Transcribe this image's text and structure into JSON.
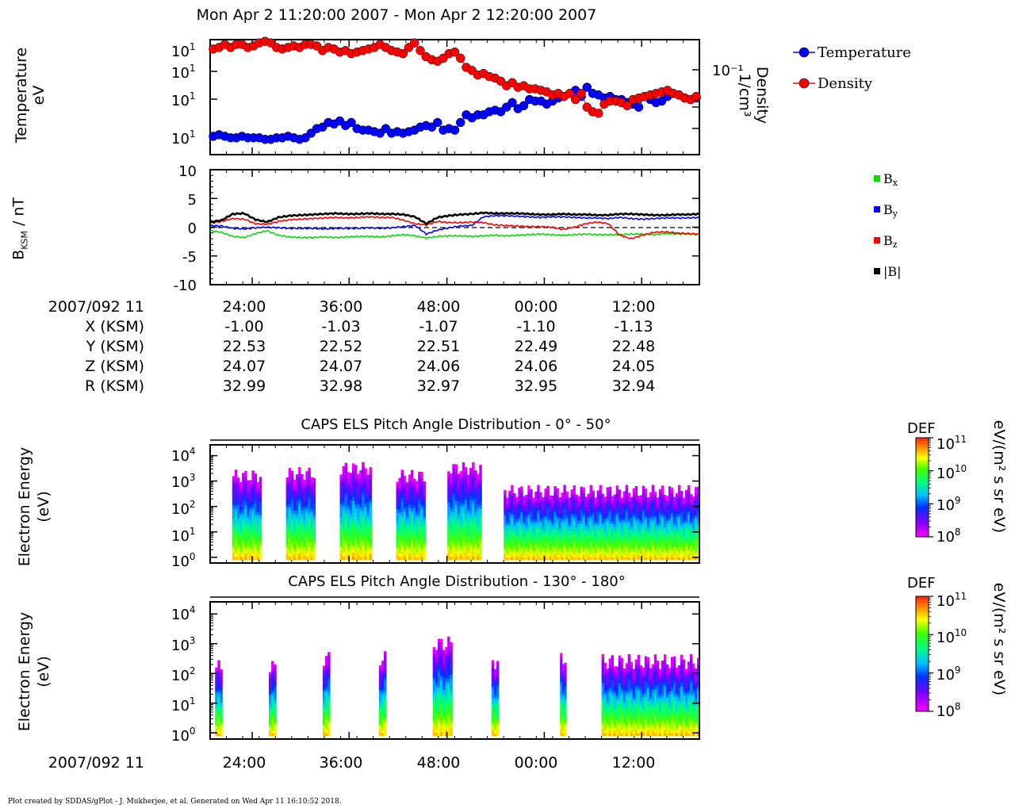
{
  "header": {
    "title": "Mon Apr 2 11:20:00 2007 - Mon Apr 2 12:20:00 2007"
  },
  "panel1": {
    "ylabel_left": [
      "Temperature",
      "eV"
    ],
    "ylabel_right": [
      "Density",
      "1/cm³"
    ],
    "left_ticks": [
      "10",
      "10",
      "10",
      "10"
    ],
    "left_tick_exps": [
      "1",
      "1",
      "1",
      "1"
    ],
    "right_tick": "10⁻¹",
    "legend": [
      {
        "label": "Temperature",
        "color": "#0000ff"
      },
      {
        "label": "Density",
        "color": "#ff0000"
      }
    ]
  },
  "panel2": {
    "ylabel_main": "B",
    "ylabel_sub": "KSM",
    "ylabel_unit": " / nT",
    "y_ticks": [
      "10",
      "5",
      "0",
      "-5",
      "-10"
    ],
    "legend": [
      {
        "label": "B",
        "sub": "x",
        "color": "#00dd00"
      },
      {
        "label": "B",
        "sub": "y",
        "color": "#0000ff"
      },
      {
        "label": "B",
        "sub": "z",
        "color": "#ff0000"
      },
      {
        "label": "|B|",
        "sub": "",
        "color": "#000000"
      }
    ]
  },
  "ephemeris": {
    "row_labels": [
      "2007/092 11",
      "X (KSM)",
      "Y (KSM)",
      "Z (KSM)",
      "R (KSM)"
    ],
    "columns": [
      {
        "time": "24:00",
        "x": "-1.00",
        "y": "22.53",
        "z": "24.07",
        "r": "32.99"
      },
      {
        "time": "36:00",
        "x": "-1.03",
        "y": "22.52",
        "z": "24.07",
        "r": "32.98"
      },
      {
        "time": "48:00",
        "x": "-1.07",
        "y": "22.51",
        "z": "24.06",
        "r": "32.97"
      },
      {
        "time": "00:00",
        "x": "-1.10",
        "y": "22.49",
        "z": "24.06",
        "r": "32.95"
      },
      {
        "time": "12:00",
        "x": "-1.13",
        "y": "22.48",
        "z": "24.05",
        "r": "32.94"
      }
    ]
  },
  "spectrogram_top": {
    "title": "CAPS ELS Pitch Angle Distribution - 0° - 50°",
    "ylabel": [
      "Electron Energy",
      "(eV)"
    ],
    "y_tick_exps": [
      "4",
      "3",
      "2",
      "1",
      "0"
    ],
    "colorbar": {
      "title": "DEF",
      "unit": "eV/(m² s sr eV)",
      "tick_exps": [
        "11",
        "10",
        "9",
        "8"
      ]
    }
  },
  "spectrogram_bottom": {
    "title": "CAPS ELS Pitch Angle Distribution - 130° - 180°",
    "ylabel": [
      "Electron Energy",
      "(eV)"
    ],
    "y_tick_exps": [
      "4",
      "3",
      "2",
      "1",
      "0"
    ],
    "colorbar": {
      "title": "DEF",
      "unit": "eV/(m² s sr eV)",
      "tick_exps": [
        "11",
        "10",
        "9",
        "8"
      ]
    }
  },
  "bottom_axis": {
    "date_label": "2007/092 11",
    "ticks": [
      "24:00",
      "36:00",
      "48:00",
      "00:00",
      "12:00"
    ]
  },
  "footer": "Plot created by SDDAS/gPlot - J. Mukherjee, et al.  Generated on Wed Apr 11 16:10:52 2018.",
  "chart_data": [
    {
      "type": "scatter",
      "title": "Mon Apr 2 11:20:00 2007 - Mon Apr 2 12:20:00 2007",
      "xlabel": "",
      "ylabel": "Temperature eV",
      "x_ticks": [
        "24:00",
        "36:00",
        "48:00",
        "00:00",
        "12:00"
      ],
      "series": [
        {
          "name": "Temperature",
          "color": "#0000ff",
          "values": [
            12,
            13,
            12,
            11,
            11,
            12,
            11,
            11,
            11,
            10,
            10,
            11,
            11,
            12,
            11,
            10,
            11,
            14,
            17,
            18,
            21,
            20,
            22,
            19,
            21,
            17,
            16,
            16,
            15,
            14,
            17,
            14,
            15,
            14,
            15,
            16,
            18,
            19,
            18,
            21,
            16,
            17,
            16,
            21,
            26,
            24,
            26,
            26,
            28,
            29,
            28,
            31,
            34,
            30,
            32,
            36,
            35,
            35,
            33,
            35,
            37,
            38,
            40,
            42,
            38,
            44,
            40,
            39,
            37,
            38,
            36,
            36,
            34,
            33,
            31,
            38,
            36,
            34,
            35,
            38,
            40,
            39,
            37,
            36,
            37
          ]
        },
        {
          "name": "Density",
          "color": "#ff0000",
          "values": [
            69,
            70,
            72,
            70,
            72,
            72,
            70,
            71,
            73,
            74,
            73,
            70,
            69,
            70,
            71,
            70,
            72,
            72,
            71,
            68,
            70,
            69,
            67,
            68,
            66,
            67,
            68,
            69,
            70,
            72,
            70,
            68,
            67,
            66,
            70,
            73,
            68,
            64,
            62,
            61,
            63,
            66,
            67,
            63,
            57,
            55,
            52,
            53,
            51,
            50,
            48,
            45,
            47,
            44,
            45,
            43,
            43,
            42,
            41,
            39,
            40,
            38,
            40,
            36,
            40,
            31,
            28,
            27,
            33,
            35,
            35,
            34,
            32,
            36,
            37,
            38,
            39,
            40,
            41,
            42,
            40,
            39,
            37,
            36,
            38
          ]
        }
      ]
    },
    {
      "type": "line",
      "title": "",
      "xlabel": "",
      "ylabel": "BKSM / nT",
      "ylim": [
        -10,
        10
      ],
      "x_ticks": [
        "24:00",
        "36:00",
        "48:00",
        "00:00",
        "12:00"
      ],
      "series": [
        {
          "name": "Bx",
          "color": "#00dd00",
          "values": [
            -0.6,
            -0.9,
            -1.6,
            -1.8,
            -1.1,
            -0.6,
            -1.4,
            -1.7,
            -1.8,
            -1.8,
            -1.7,
            -1.8,
            -1.7,
            -1.6,
            -1.6,
            -1.7,
            -1.5,
            -1.3,
            -1.5,
            -1.9,
            -1.6,
            -1.5,
            -1.5,
            -1.6,
            -1.5,
            -1.4,
            -1.5,
            -1.4,
            -1.3,
            -1.2,
            -1.3,
            -1.4,
            -1.3,
            -1.2,
            -1.3,
            -1.3,
            -1.3,
            -1.2,
            -1.2,
            -1.3,
            -1.1,
            -1.2,
            -1.2,
            -1.3
          ]
        },
        {
          "name": "By",
          "color": "#0000ff",
          "values": [
            0.3,
            0.2,
            -0.2,
            -0.3,
            -0.1,
            0.0,
            -0.1,
            -0.2,
            -0.2,
            -0.2,
            -0.3,
            -0.2,
            -0.2,
            -0.2,
            -0.1,
            -0.2,
            -0.1,
            0.1,
            0.3,
            -1.2,
            -0.5,
            -0.1,
            0.2,
            0.3,
            1.8,
            2.0,
            2.0,
            1.9,
            1.8,
            1.7,
            1.8,
            1.8,
            1.7,
            1.6,
            1.6,
            1.5,
            1.7,
            1.5,
            1.4,
            1.5,
            1.6,
            1.6,
            1.6,
            1.7
          ]
        },
        {
          "name": "Bz",
          "color": "#ff0000",
          "values": [
            0.7,
            1.0,
            1.5,
            1.4,
            0.6,
            0.5,
            1.0,
            1.3,
            1.4,
            1.5,
            1.6,
            1.7,
            1.6,
            1.7,
            1.8,
            1.7,
            1.7,
            1.2,
            0.6,
            0.4,
            1.0,
            0.8,
            0.8,
            0.9,
            0.8,
            0.4,
            0.3,
            0.2,
            0.1,
            0.1,
            0.0,
            -0.4,
            0.0,
            0.6,
            0.9,
            0.6,
            -1.4,
            -2.0,
            -1.4,
            -0.9,
            -0.8,
            -1.0,
            -1.1,
            -1.2
          ]
        },
        {
          "name": "|B|",
          "color": "#000000",
          "values": [
            0.9,
            1.2,
            2.3,
            2.4,
            1.3,
            0.9,
            1.7,
            2.0,
            2.1,
            2.2,
            2.3,
            2.4,
            2.3,
            2.3,
            2.4,
            2.3,
            2.3,
            2.2,
            1.8,
            0.6,
            1.7,
            2.0,
            2.2,
            2.3,
            2.5,
            2.4,
            2.4,
            2.4,
            2.3,
            2.2,
            2.2,
            2.3,
            2.2,
            2.2,
            2.1,
            2.1,
            2.3,
            2.3,
            2.2,
            2.1,
            2.1,
            2.2,
            2.2,
            2.3
          ]
        }
      ]
    },
    {
      "type": "heatmap",
      "title": "CAPS ELS Pitch Angle Distribution - 0° - 50°",
      "ylabel": "Electron Energy (eV)",
      "y_ticks": [
        "10^4",
        "10^3",
        "10^2",
        "10^1",
        "10^0"
      ],
      "color_range": [
        "10^8",
        "10^11"
      ],
      "color_label": "DEF eV/(m² s sr eV)",
      "data_blocks": [
        {
          "start": 0.045,
          "end": 0.105,
          "top_log_eV": 3.2
        },
        {
          "start": 0.155,
          "end": 0.215,
          "top_log_eV": 3.3
        },
        {
          "start": 0.265,
          "end": 0.33,
          "top_log_eV": 3.5
        },
        {
          "start": 0.38,
          "end": 0.44,
          "top_log_eV": 3.2
        },
        {
          "start": 0.485,
          "end": 0.555,
          "top_log_eV": 3.5
        },
        {
          "start": 0.6,
          "end": 1.0,
          "top_log_eV": 2.6
        }
      ]
    },
    {
      "type": "heatmap",
      "title": "CAPS ELS Pitch Angle Distribution - 130° - 180°",
      "ylabel": "Electron Energy (eV)",
      "y_ticks": [
        "10^4",
        "10^3",
        "10^2",
        "10^1",
        "10^0"
      ],
      "color_range": [
        "10^8",
        "10^11"
      ],
      "color_label": "DEF eV/(m² s sr eV)",
      "data_blocks": [
        {
          "start": 0.01,
          "end": 0.025,
          "top_log_eV": 2.2
        },
        {
          "start": 0.12,
          "end": 0.135,
          "top_log_eV": 2.2
        },
        {
          "start": 0.23,
          "end": 0.245,
          "top_log_eV": 2.5
        },
        {
          "start": 0.345,
          "end": 0.36,
          "top_log_eV": 2.5
        },
        {
          "start": 0.455,
          "end": 0.495,
          "top_log_eV": 3.0
        },
        {
          "start": 0.575,
          "end": 0.59,
          "top_log_eV": 2.4
        },
        {
          "start": 0.715,
          "end": 0.728,
          "top_log_eV": 2.5
        },
        {
          "start": 0.8,
          "end": 1.0,
          "top_log_eV": 2.4
        }
      ]
    }
  ]
}
